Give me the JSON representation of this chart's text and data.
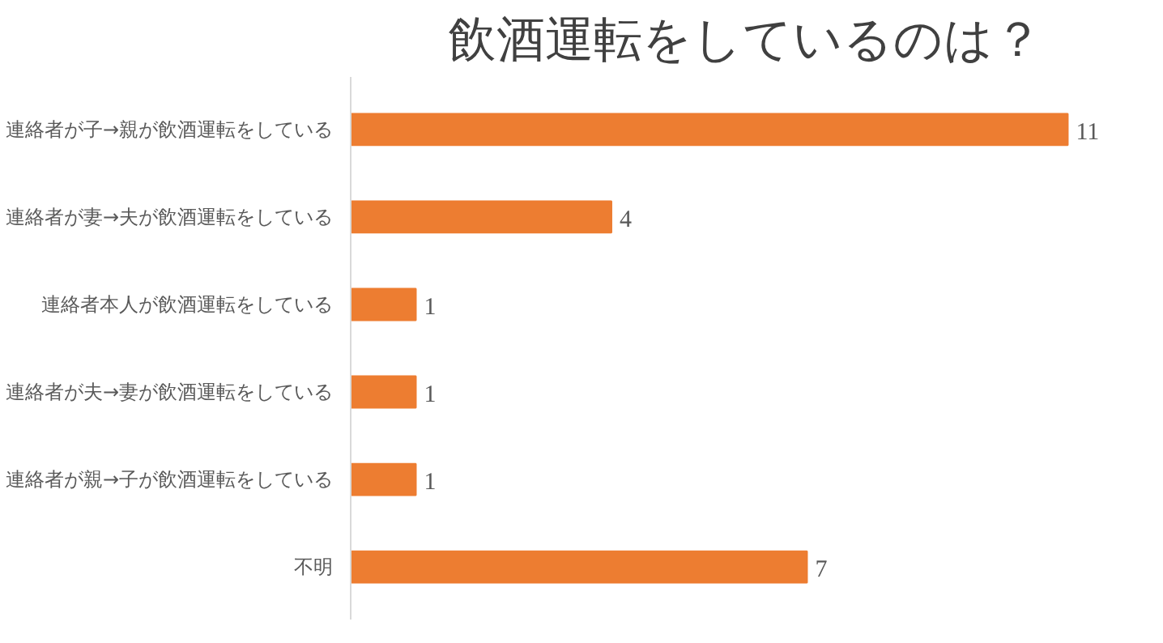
{
  "chart_data": {
    "type": "bar",
    "orientation": "horizontal",
    "title": "飲酒運転をしているのは？",
    "categories": [
      "連絡者が子→親が飲酒運転をしている",
      "連絡者が妻→夫が飲酒運転をしている",
      "連絡者本人が飲酒運転をしている",
      "連絡者が夫→妻が飲酒運転をしている",
      "連絡者が親→子が飲酒運転をしている",
      "不明"
    ],
    "values": [
      11,
      4,
      1,
      1,
      1,
      7
    ],
    "color": "#ed7d31",
    "data_labels": true,
    "grid": false
  }
}
